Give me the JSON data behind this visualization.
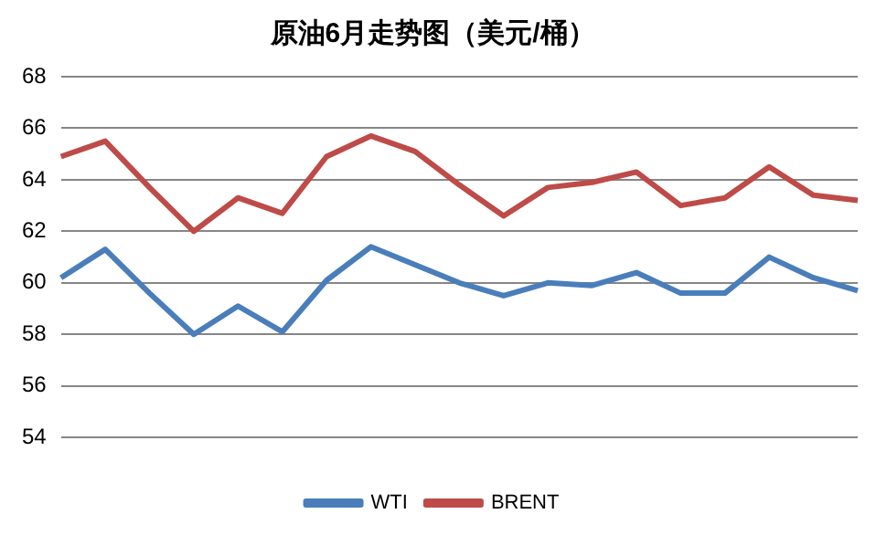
{
  "chart_data": {
    "type": "line",
    "title": "原油6月走势图（美元/桶）",
    "categories": [
      null,
      null,
      null,
      null,
      null,
      null,
      null,
      null,
      null,
      null,
      null,
      null,
      null,
      null,
      null,
      null,
      null,
      null,
      null
    ],
    "series": [
      {
        "name": "WTI",
        "color": "#4a7ebb",
        "values": [
          60.2,
          61.3,
          59.6,
          58.0,
          59.1,
          58.1,
          60.1,
          61.4,
          60.7,
          60.0,
          59.5,
          60.0,
          59.9,
          60.4,
          59.6,
          59.6,
          61.0,
          60.2,
          59.7
        ]
      },
      {
        "name": "BRENT",
        "color": "#be4b48",
        "values": [
          64.9,
          65.5,
          63.7,
          62.0,
          63.3,
          62.7,
          64.9,
          65.7,
          65.1,
          63.8,
          62.6,
          63.7,
          63.9,
          64.3,
          63.0,
          63.3,
          64.5,
          63.4,
          63.2
        ]
      }
    ],
    "ylim": [
      54,
      68
    ],
    "yticks": [
      54,
      56,
      58,
      60,
      62,
      64,
      66,
      68
    ],
    "grid": "y",
    "legend": "bottom",
    "marker": "none",
    "line_style": "solid"
  }
}
